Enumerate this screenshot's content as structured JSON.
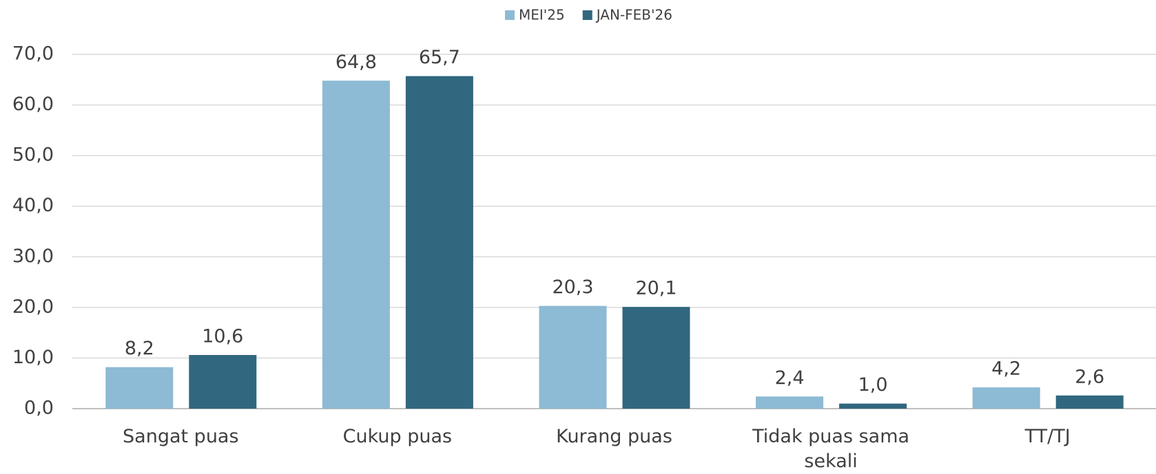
{
  "chart_data": {
    "type": "bar",
    "categories": [
      "Sangat puas",
      "Cukup puas",
      "Kurang puas",
      "Tidak puas sama sekali",
      "TT/TJ"
    ],
    "series": [
      {
        "name": "MEI'25",
        "color": "#8dbad4",
        "values": [
          8.2,
          64.8,
          20.3,
          2.4,
          4.2
        ],
        "value_labels": [
          "8,2",
          "64,8",
          "20,3",
          "2,4",
          "4,2"
        ]
      },
      {
        "name": "JAN-FEB'26",
        "color": "#31677f",
        "values": [
          10.6,
          65.7,
          20.1,
          1.0,
          2.6
        ],
        "value_labels": [
          "10,6",
          "65,7",
          "20,1",
          "1,0",
          "2,6"
        ]
      }
    ],
    "ylim": [
      0,
      70
    ],
    "yticks": [
      {
        "value": 0,
        "label": "0,0"
      },
      {
        "value": 10,
        "label": "10,0"
      },
      {
        "value": 20,
        "label": "20,0"
      },
      {
        "value": 30,
        "label": "30,0"
      },
      {
        "value": 40,
        "label": "40,0"
      },
      {
        "value": 50,
        "label": "50,0"
      },
      {
        "value": 60,
        "label": "60,0"
      },
      {
        "value": 70,
        "label": "70,0"
      }
    ],
    "grid": true,
    "legend": "top"
  }
}
